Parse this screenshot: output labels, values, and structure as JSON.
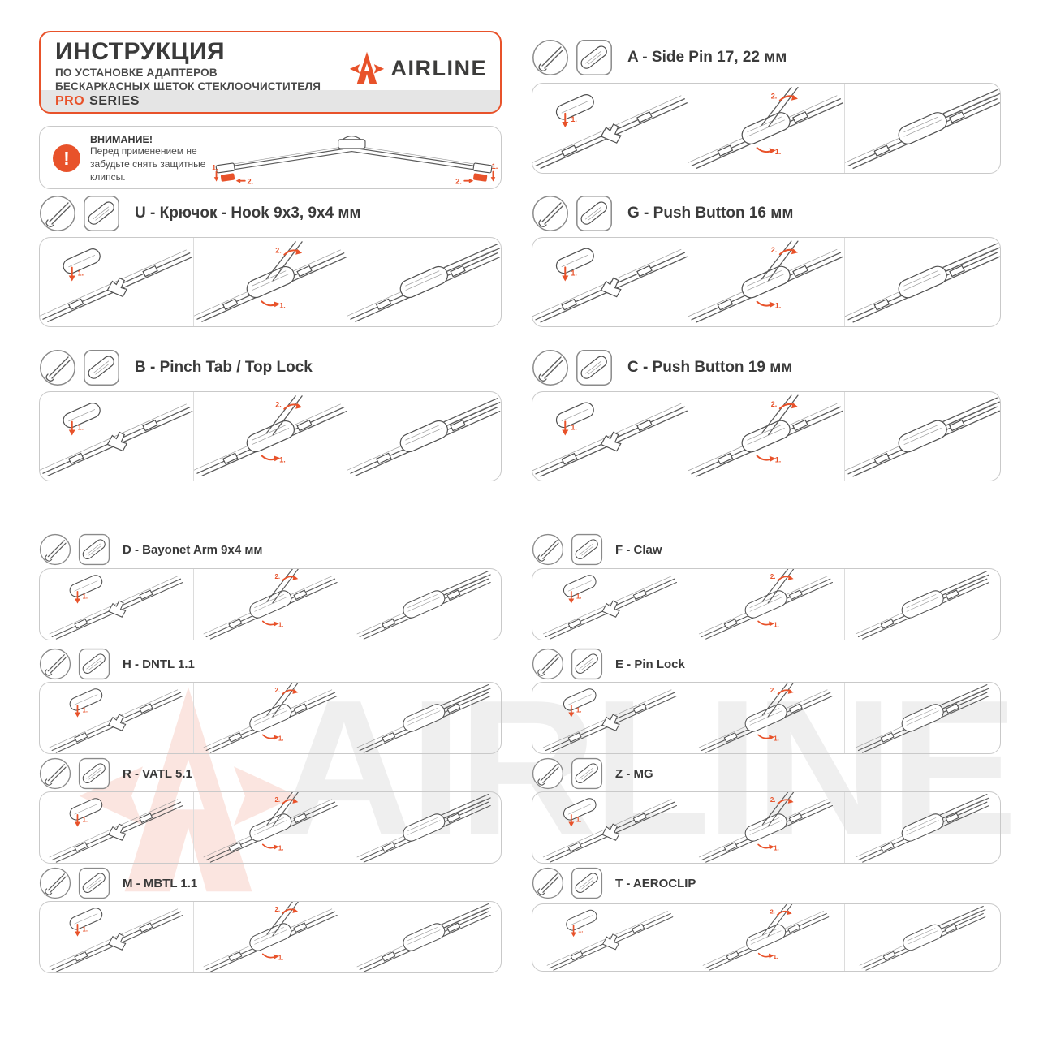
{
  "header": {
    "title": "ИНСТРУКЦИЯ",
    "subtitle1": "ПО УСТАНОВКЕ АДАПТЕРОВ",
    "subtitle2": "БЕСКАРКАСНЫХ ЩЕТОК СТЕКЛООЧИСТИТЕЛЯ",
    "series_pro": "PRO",
    "series_rest": "SERIES",
    "brand": "AIRLINE"
  },
  "warning": {
    "title": "ВНИМАНИЕ!",
    "text": "Перед применением не забудьте снять защитные клипсы.",
    "clip_step1": "1.",
    "clip_step2": "2."
  },
  "steps": {
    "s1": "1.",
    "s2": "2."
  },
  "watermark": {
    "brand": "AIRLINE"
  },
  "colors": {
    "accent": "#e8522a",
    "dark": "#3a3a3b",
    "band": "#e5e5e5",
    "panel_border": "#c9c9c9"
  },
  "sections": {
    "left": [
      {
        "code": "U",
        "label": "U - Крючок - Hook 9x3, 9x4 мм"
      },
      {
        "code": "B",
        "label": "B - Pinch Tab / Top Lock"
      },
      {
        "code": "D",
        "label": "D - Bayonet Arm 9x4 мм"
      },
      {
        "code": "H",
        "label": "H - DNTL 1.1"
      },
      {
        "code": "R",
        "label": "R - VATL 5.1"
      },
      {
        "code": "M",
        "label": "M - MBTL 1.1"
      }
    ],
    "right": [
      {
        "code": "A",
        "label": "A - Side Pin 17, 22 мм"
      },
      {
        "code": "G",
        "label": "G - Push Button 16 мм"
      },
      {
        "code": "C",
        "label": "C - Push Button 19 мм"
      },
      {
        "code": "F",
        "label": "F - Claw"
      },
      {
        "code": "E",
        "label": "E - Pin Lock"
      },
      {
        "code": "Z",
        "label": "Z - MG"
      },
      {
        "code": "T",
        "label": "T - AEROCLIP"
      }
    ]
  }
}
